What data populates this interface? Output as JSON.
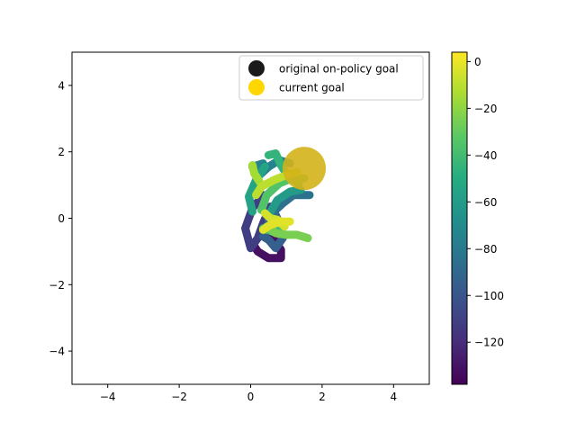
{
  "chart_data": {
    "type": "scatter",
    "xlim": [
      -5,
      5
    ],
    "ylim": [
      -5,
      5
    ],
    "xticks": [
      "−4",
      "−2",
      "0",
      "2",
      "4"
    ],
    "yticks": [
      "−4",
      "−2",
      "0",
      "2",
      "4"
    ],
    "xtick_values": [
      -4,
      -2,
      0,
      2,
      4
    ],
    "ytick_values": [
      -4,
      -2,
      0,
      2,
      4
    ],
    "grid": false,
    "legend": {
      "placement": "top-right",
      "entries": [
        {
          "label": "original on-policy goal",
          "color": "#1a1a1a"
        },
        {
          "label": "current goal",
          "color": "#ffd700"
        }
      ]
    },
    "colorbar": {
      "cmap": "viridis",
      "range": [
        -138,
        4
      ],
      "ticks": [
        "0",
        "−20",
        "−40",
        "−60",
        "−80",
        "−100",
        "−120"
      ],
      "tick_values": [
        0,
        -20,
        -40,
        -60,
        -80,
        -100,
        -120
      ]
    },
    "goal_marker": {
      "x": 1.5,
      "y": 1.5,
      "color": "#d4b21a"
    },
    "trajectories": [
      {
        "value": -132,
        "points": [
          [
            0.05,
            -0.75
          ],
          [
            0.2,
            -1.0
          ],
          [
            0.5,
            -1.2
          ],
          [
            0.85,
            -1.2
          ],
          [
            0.85,
            -0.95
          ],
          [
            0.6,
            -0.55
          ],
          [
            0.45,
            -0.1
          ]
        ]
      },
      {
        "value": -112,
        "points": [
          [
            0.35,
            0.7
          ],
          [
            0.05,
            0.3
          ],
          [
            -0.15,
            -0.3
          ],
          [
            0.0,
            -0.9
          ],
          [
            0.2,
            -0.6
          ],
          [
            0.35,
            -0.15
          ],
          [
            0.55,
            0.35
          ]
        ]
      },
      {
        "value": -95,
        "points": [
          [
            0.35,
            -0.55
          ],
          [
            0.5,
            -0.65
          ],
          [
            0.7,
            -0.9
          ],
          [
            0.9,
            -0.6
          ],
          [
            0.85,
            -0.25
          ],
          [
            0.7,
            0.1
          ]
        ]
      },
      {
        "value": -85,
        "points": [
          [
            1.65,
            0.7
          ],
          [
            1.2,
            0.7
          ],
          [
            0.9,
            0.45
          ],
          [
            0.65,
            0.2
          ],
          [
            0.5,
            -0.05
          ]
        ]
      },
      {
        "value": -75,
        "points": [
          [
            0.35,
            1.65
          ],
          [
            0.05,
            1.55
          ],
          [
            0.2,
            1.25
          ],
          [
            0.5,
            1.55
          ],
          [
            0.8,
            1.75
          ],
          [
            1.1,
            1.65
          ]
        ]
      },
      {
        "value": -55,
        "points": [
          [
            0.4,
            1.55
          ],
          [
            0.15,
            1.15
          ],
          [
            -0.05,
            0.65
          ],
          [
            0.05,
            0.2
          ]
        ]
      },
      {
        "value": -45,
        "points": [
          [
            0.5,
            1.9
          ],
          [
            0.7,
            1.95
          ],
          [
            0.85,
            1.6
          ],
          [
            1.05,
            1.25
          ],
          [
            1.35,
            1.05
          ]
        ]
      },
      {
        "value": -35,
        "points": [
          [
            0.3,
            0.25
          ],
          [
            0.45,
            0.7
          ],
          [
            0.8,
            1.05
          ],
          [
            1.15,
            1.2
          ],
          [
            1.5,
            1.2
          ]
        ]
      },
      {
        "value": -60,
        "points": [
          [
            0.5,
            0.1
          ],
          [
            0.75,
            0.55
          ],
          [
            1.1,
            0.8
          ],
          [
            1.4,
            0.85
          ]
        ]
      },
      {
        "value": -25,
        "points": [
          [
            0.45,
            -0.25
          ],
          [
            0.7,
            -0.45
          ],
          [
            1.0,
            -0.5
          ],
          [
            1.3,
            -0.5
          ],
          [
            1.6,
            -0.6
          ]
        ]
      },
      {
        "value": -10,
        "points": [
          [
            0.15,
            0.7
          ],
          [
            0.3,
            0.95
          ],
          [
            0.65,
            1.15
          ],
          [
            1.0,
            1.3
          ],
          [
            1.3,
            1.4
          ]
        ]
      },
      {
        "value": -2,
        "points": [
          [
            0.35,
            -0.35
          ],
          [
            0.55,
            -0.2
          ],
          [
            0.85,
            -0.1
          ],
          [
            1.1,
            -0.1
          ]
        ]
      },
      {
        "value": -5,
        "points": [
          [
            0.4,
            0.15
          ],
          [
            0.55,
            0.0
          ],
          [
            0.75,
            -0.05
          ],
          [
            0.95,
            -0.25
          ]
        ]
      },
      {
        "value": -15,
        "points": [
          [
            0.05,
            1.6
          ],
          [
            0.1,
            1.35
          ],
          [
            0.25,
            1.1
          ]
        ]
      },
      {
        "value": -40,
        "points": [
          [
            0.35,
            -0.3
          ],
          [
            0.6,
            -0.4
          ],
          [
            0.8,
            -0.3
          ]
        ]
      }
    ]
  }
}
